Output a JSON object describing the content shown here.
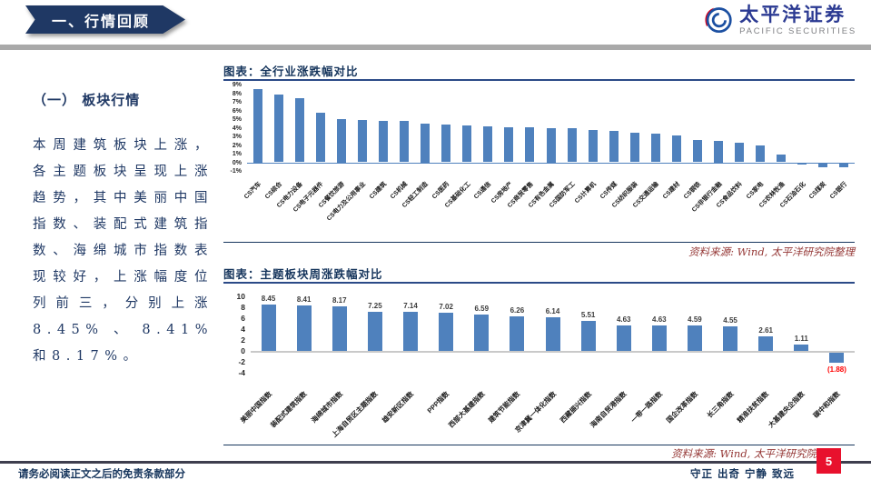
{
  "header": {
    "banner_title": "一、行情回顾",
    "logo_cn": "太平洋证券",
    "logo_en": "PACIFIC SECURITIES"
  },
  "left_panel": {
    "section_title": "（一） 板块行情",
    "paragraph": "本周建筑板块上涨，各主题板块呈现上涨趋势，其中美丽中国指数、装配式建筑指数、海绵城市指数表现较好，上涨幅度位列前三，分别上涨8.45%、8.41%和8.17%。"
  },
  "chart_data": [
    {
      "type": "bar",
      "title": "图表：全行业涨跌幅对比",
      "categories": [
        "CS汽车",
        "CS综合",
        "CS电力设备",
        "CS电子元器件",
        "CS餐饮旅游",
        "CS电力及公用事业",
        "CS建筑",
        "CS机械",
        "CS轻工制造",
        "CS医药",
        "CS基础化工",
        "CS通信",
        "CS房地产",
        "CS商贸零售",
        "CS有色金属",
        "CS国防军工",
        "CS计算机",
        "CS传媒",
        "CS纺织服装",
        "CS交通运输",
        "CS建材",
        "CS钢铁",
        "CS非银行金融",
        "CS食品饮料",
        "CS家电",
        "CS农林牧渔",
        "CS石油石化",
        "CS煤炭",
        "CS银行"
      ],
      "values": [
        8.5,
        7.8,
        7.4,
        5.7,
        5.0,
        4.9,
        4.8,
        4.8,
        4.5,
        4.4,
        4.3,
        4.2,
        4.1,
        4.1,
        4.0,
        3.9,
        3.7,
        3.6,
        3.4,
        3.3,
        3.1,
        2.6,
        2.5,
        2.3,
        1.9,
        0.9,
        -0.1,
        -0.4,
        -0.45
      ],
      "ylim": [
        -1,
        9
      ],
      "ytick_step": 1,
      "ytick_suffix": "%",
      "grid": false,
      "legend": "none",
      "show_values": false,
      "bar_color": "#4f81bd",
      "axis_color": "#4f81bd",
      "source": "资料来源: Wind, 太平洋研究院整理"
    },
    {
      "type": "bar",
      "title": "图表：主题板块周涨跌幅对比",
      "categories": [
        "美丽中国指数",
        "装配式建筑指数",
        "海绵城市指数",
        "上海自贸区主题指数",
        "雄安新区指数",
        "PPP指数",
        "西部大基建指数",
        "建筑节能指数",
        "京津冀一体化指数",
        "西藏振兴指数",
        "海南自贸港指数",
        "一带一路指数",
        "国企改革指数",
        "长三角指数",
        "精准扶贫指数",
        "大基建央企指数",
        "碳中和指数"
      ],
      "values": [
        8.45,
        8.41,
        8.17,
        7.25,
        7.14,
        7.02,
        6.59,
        6.26,
        6.14,
        5.51,
        4.63,
        4.63,
        4.59,
        4.55,
        2.61,
        1.11,
        -1.88
      ],
      "ylim": [
        -4,
        10
      ],
      "ytick_step": 2,
      "ytick_suffix": "",
      "grid": false,
      "legend": "none",
      "show_values": true,
      "negative_label_color": "#ff0000",
      "bar_color": "#4f81bd",
      "axis_color": "#c9c9c9",
      "source": "资料来源: Wind, 太平洋研究院整理"
    }
  ],
  "sources": {
    "note1": "资料来源: Wind, 太平洋研究院整理",
    "note2": "资料来源: Wind, 太平洋研究院整理"
  },
  "footer": {
    "disclaimer": "请务必阅读正文之后的免责条款部分",
    "motto": "守正 出奇 宁静 致远",
    "page_number": "5"
  },
  "colors": {
    "banner_navy": "#1f3864",
    "bar_blue": "#4f81bd",
    "source_red": "#943634",
    "page_red": "#e8112d",
    "header_gray": "#a9a9a9"
  }
}
